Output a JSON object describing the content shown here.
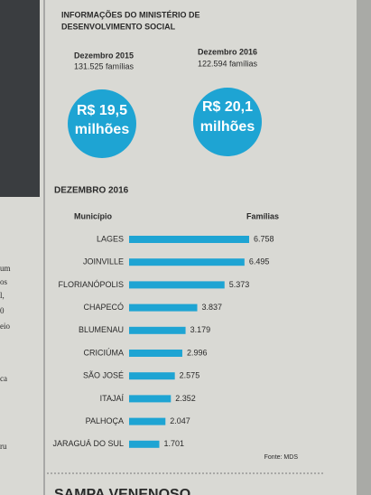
{
  "header": {
    "title_line1": "INFORMAÇÕES DO MINISTÉRIO DE",
    "title_line2": "DESENVOLVIMENTO SOCIAL"
  },
  "summary": [
    {
      "period": "Dezembro 2015",
      "families": "131.525 famílias",
      "amount": "R$ 19,5",
      "unit": "milhões"
    },
    {
      "period": "Dezembro 2016",
      "families": "122.594 famílias",
      "amount": "R$ 20,1",
      "unit": "milhões"
    }
  ],
  "margin_text": [
    "um",
    "os",
    "l,",
    "0",
    "eio",
    "ca",
    "ru"
  ],
  "next_headline": "SAMPA VENENOSO",
  "chart_data": {
    "type": "bar",
    "horizontal": true,
    "title": "DEZEMBRO 2016",
    "category_header": "Município",
    "value_header": "Famílias",
    "source": "Fonte: MDS",
    "color": "#1ea4d3",
    "categories": [
      "LAGES",
      "JOINVILLE",
      "FLORIANÓPOLIS",
      "CHAPECÓ",
      "BLUMENAU",
      "CRICIÚMA",
      "SÃO JOSÉ",
      "ITAJAÍ",
      "PALHOÇA",
      "JARAGUÁ DO SUL"
    ],
    "values": [
      6758,
      6495,
      5373,
      3837,
      3179,
      2996,
      2575,
      2352,
      2047,
      1701
    ],
    "value_labels": [
      "6.758",
      "6.495",
      "5.373",
      "3.837",
      "3.179",
      "2.996",
      "2.575",
      "2.352",
      "2.047",
      "1.701"
    ]
  }
}
